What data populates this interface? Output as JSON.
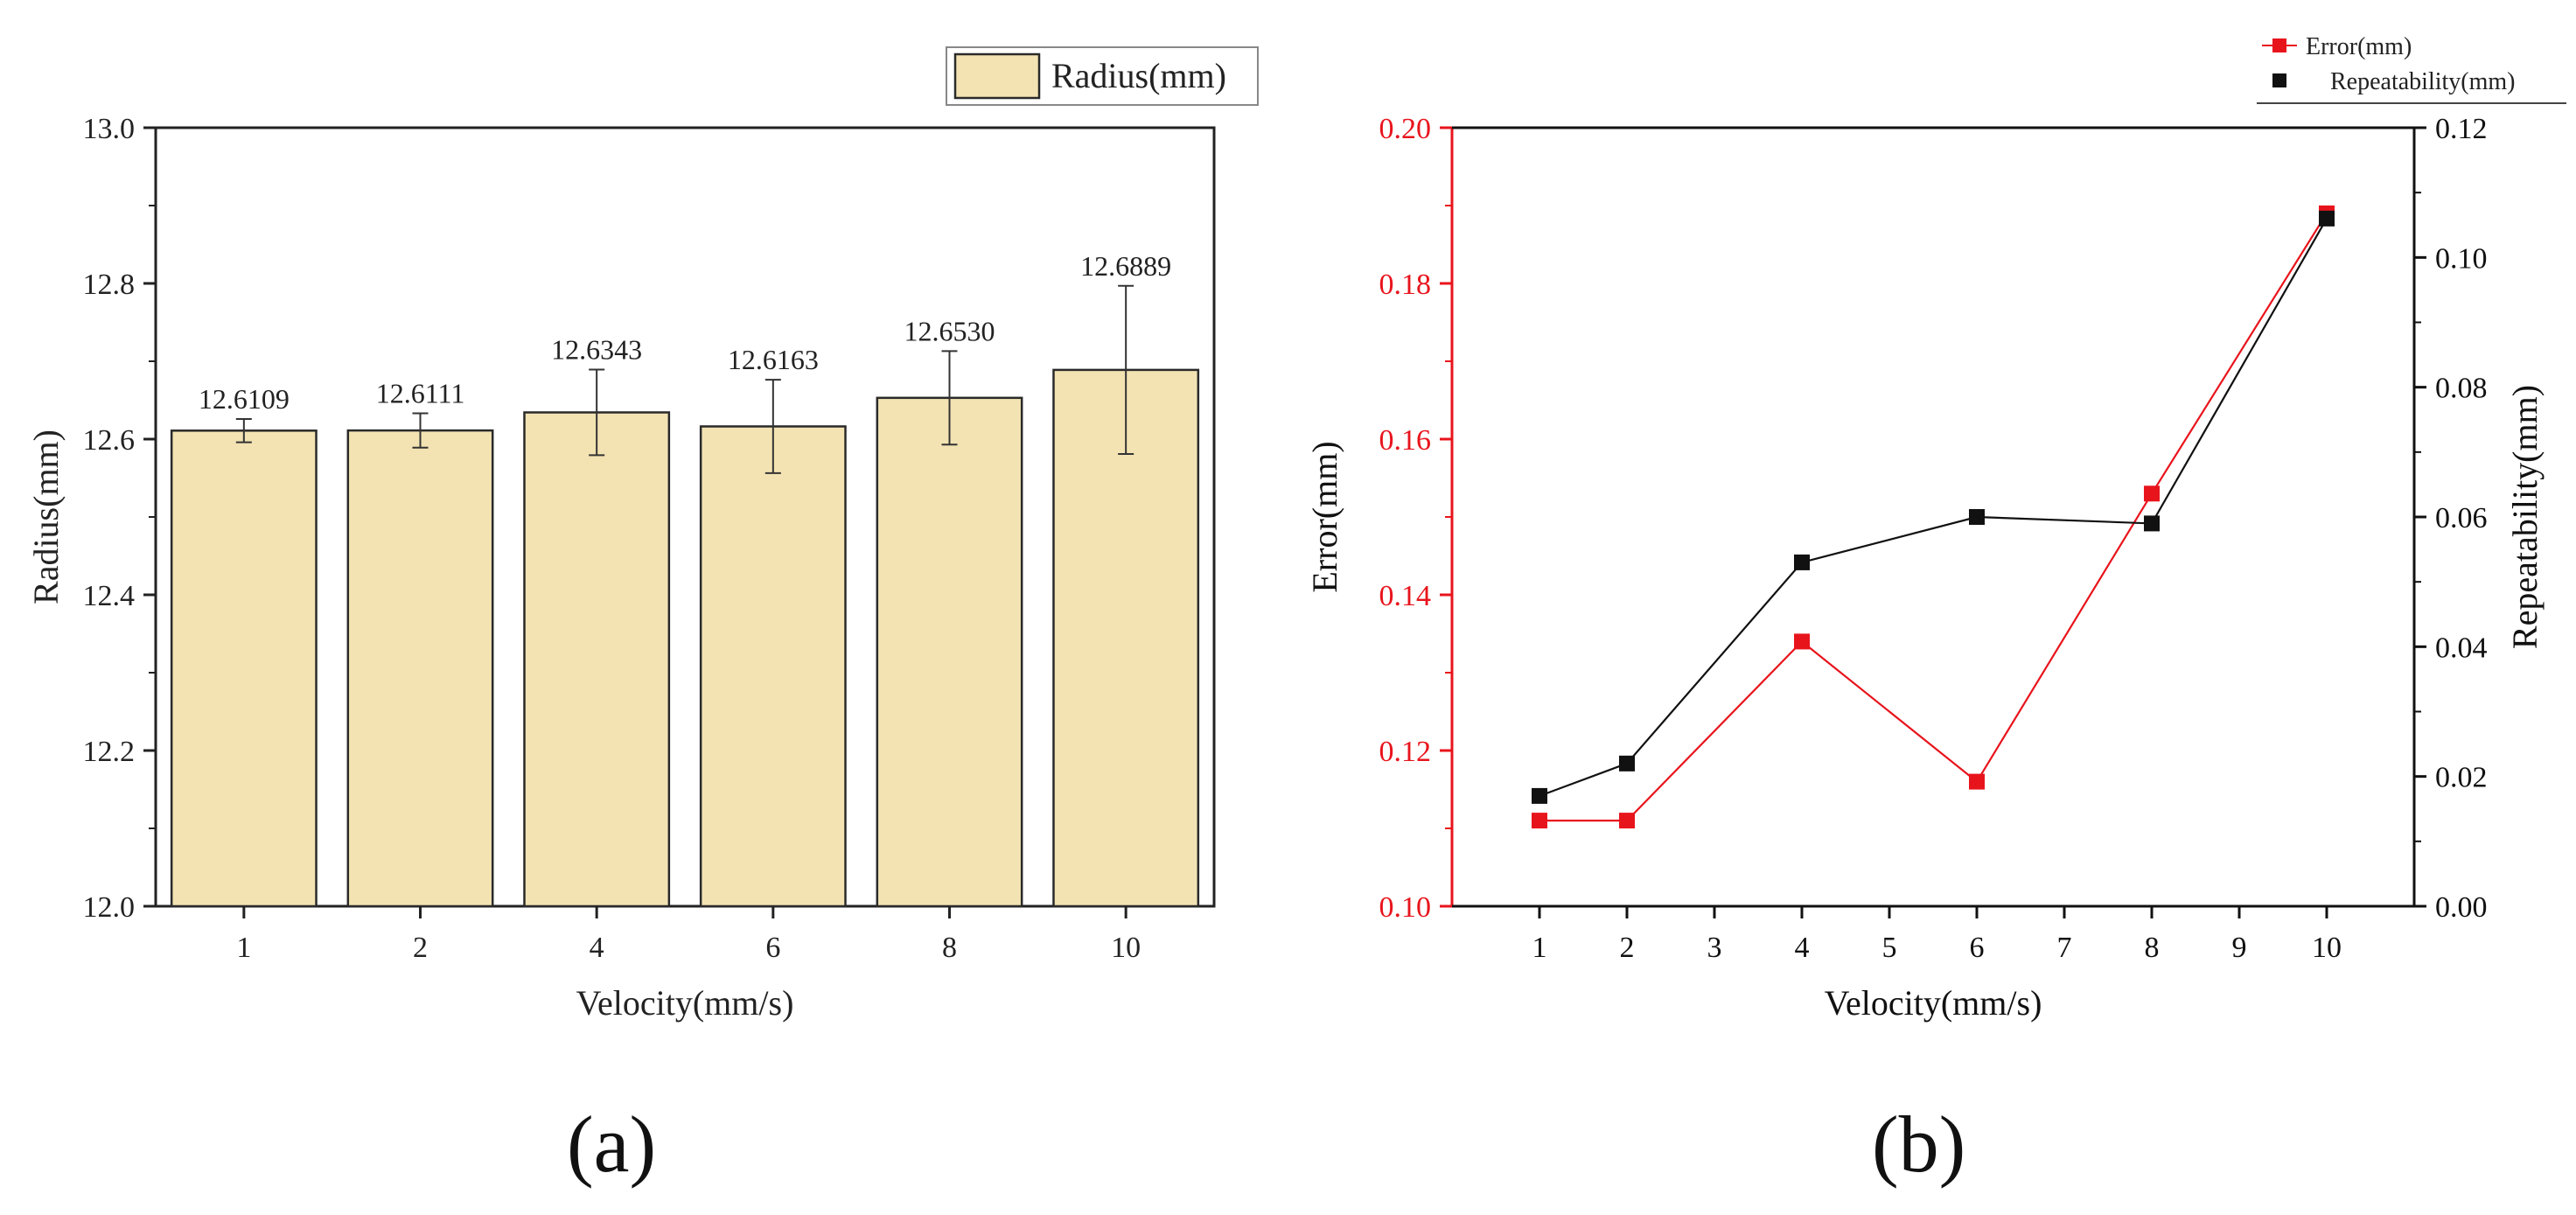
{
  "chart_data": [
    {
      "type": "bar",
      "panel": "(a)",
      "categories": [
        "1",
        "2",
        "4",
        "6",
        "8",
        "10"
      ],
      "values": [
        12.6109,
        12.6111,
        12.6343,
        12.6163,
        12.653,
        12.6889
      ],
      "value_labels": [
        "12.6109",
        "12.6111",
        "12.6343",
        "12.6163",
        "12.6530",
        "12.6889"
      ],
      "error": [
        0.015,
        0.022,
        0.055,
        0.06,
        0.06,
        0.108
      ],
      "xlabel": "Velocity(mm/s)",
      "ylabel": "Radius(mm)",
      "ylim": [
        12.0,
        13.0
      ],
      "yticks": [
        "12.0",
        "12.2",
        "12.4",
        "12.6",
        "12.8",
        "13.0"
      ],
      "yticks_values": [
        12.0,
        12.2,
        12.4,
        12.6,
        12.8,
        13.0
      ],
      "legend": [
        "Radius(mm)"
      ],
      "legend_position": "top-right",
      "colors": {
        "bar": "#f3e3b3",
        "bar_edge": "#2a2a2a",
        "axis": "#222222"
      }
    },
    {
      "type": "line",
      "panel": "(b)",
      "x": [
        1,
        2,
        4,
        6,
        8,
        10
      ],
      "xlabel": "Velocity(mm/s)",
      "xlim": [
        0,
        11
      ],
      "xticks": [
        "1",
        "2",
        "3",
        "4",
        "5",
        "6",
        "7",
        "8",
        "9",
        "10"
      ],
      "xticks_values": [
        1,
        2,
        3,
        4,
        5,
        6,
        7,
        8,
        9,
        10
      ],
      "series": [
        {
          "name": "Error(mm)",
          "axis": "left",
          "values": [
            0.111,
            0.111,
            0.134,
            0.116,
            0.153,
            0.189
          ],
          "color": "#e8141c"
        },
        {
          "name": "Repeatability(mm)",
          "axis": "right",
          "values": [
            0.017,
            0.022,
            0.053,
            0.06,
            0.059,
            0.106
          ],
          "color": "#111111"
        }
      ],
      "ylabel_left": "Error(mm)",
      "ylim_left": [
        0.1,
        0.2
      ],
      "yticks_left": [
        "0.10",
        "0.12",
        "0.14",
        "0.16",
        "0.18",
        "0.20"
      ],
      "yticks_left_values": [
        0.1,
        0.12,
        0.14,
        0.16,
        0.18,
        0.2
      ],
      "ylabel_right": "Repeatability(mm)",
      "ylim_right": [
        0.0,
        0.12
      ],
      "yticks_right": [
        "0.00",
        "0.02",
        "0.04",
        "0.06",
        "0.08",
        "0.10",
        "0.12"
      ],
      "yticks_right_values": [
        0.0,
        0.02,
        0.04,
        0.06,
        0.08,
        0.1,
        0.12
      ],
      "legend_position": "top-right"
    }
  ]
}
